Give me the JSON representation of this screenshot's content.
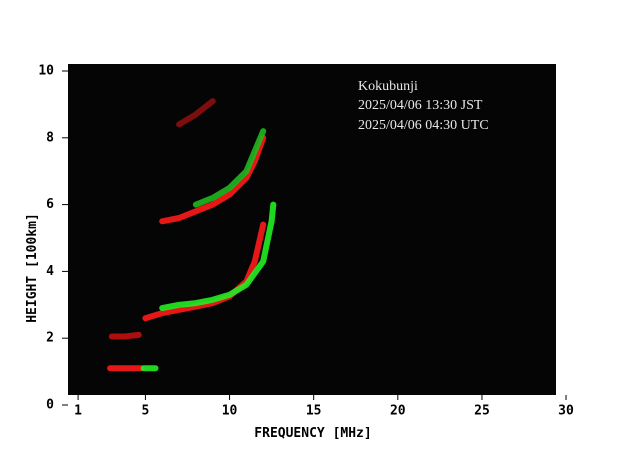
{
  "chart_data": {
    "type": "ionogram",
    "annotations": [
      "Kokubunji",
      "2025/04/06 13:30 JST",
      "2025/04/06 04:30 UTC"
    ],
    "x_label": "FREQUENCY [MHz]",
    "y_label": "HEIGHT [100km]",
    "xlim": [
      0.4,
      29.4
    ],
    "xticks": [
      1,
      5,
      10,
      15,
      20,
      25,
      30
    ],
    "ylim": [
      0,
      10
    ],
    "yticks": [
      0,
      2,
      4,
      6,
      8,
      10
    ],
    "series": [
      {
        "color": "#ff1a1a",
        "x": [
          2.9,
          3.5,
          4.2,
          4.8
        ],
        "values": [
          1.1,
          1.1,
          1.1,
          1.1
        ]
      },
      {
        "color": "#22ee22",
        "x": [
          4.9,
          5.3,
          5.6
        ],
        "values": [
          1.1,
          1.1,
          1.1
        ]
      },
      {
        "color": "#c01010",
        "x": [
          3.0,
          3.8,
          4.6
        ],
        "values": [
          2.05,
          2.05,
          2.1
        ]
      },
      {
        "color": "#ff1a1a",
        "x": [
          5.0,
          6.0,
          7.0,
          8.0,
          9.0,
          10.0,
          11.0,
          11.5,
          12.0
        ],
        "values": [
          2.6,
          2.75,
          2.85,
          2.95,
          3.05,
          3.25,
          3.7,
          4.3,
          5.4
        ]
      },
      {
        "color": "#22ee22",
        "x": [
          6.0,
          7.0,
          8.0,
          9.0,
          10.0,
          11.0,
          12.0,
          12.5,
          12.6
        ],
        "values": [
          2.9,
          3.0,
          3.05,
          3.15,
          3.3,
          3.6,
          4.3,
          5.5,
          6.0
        ]
      },
      {
        "color": "#ff1a1a",
        "x": [
          6.0,
          7.0,
          8.0,
          9.0,
          10.0,
          11.0,
          11.5,
          12.0
        ],
        "values": [
          5.5,
          5.6,
          5.8,
          6.0,
          6.3,
          6.8,
          7.3,
          8.0
        ]
      },
      {
        "color": "#1fb81f",
        "x": [
          8.0,
          9.0,
          10.0,
          11.0,
          12.0
        ],
        "values": [
          6.0,
          6.2,
          6.5,
          7.0,
          8.2
        ]
      },
      {
        "color": "#8a1010",
        "x": [
          7.0,
          8.0,
          9.0
        ],
        "values": [
          8.4,
          8.7,
          9.1
        ]
      }
    ]
  }
}
